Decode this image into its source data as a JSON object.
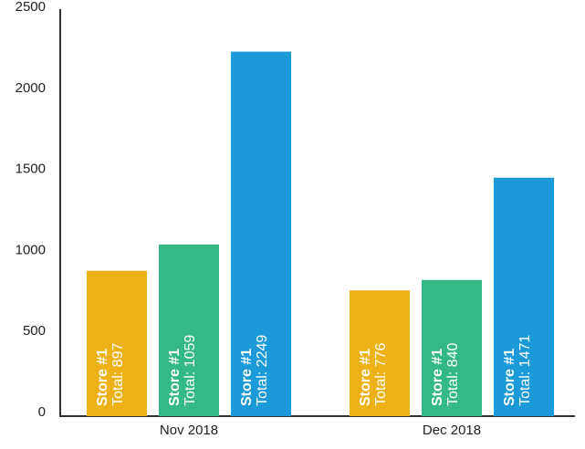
{
  "chart_data": {
    "type": "bar",
    "categories": [
      "Nov 2018",
      "Dec 2018"
    ],
    "series": [
      {
        "name": "Store #1",
        "color": "#efb118",
        "values": [
          897,
          776
        ],
        "value_labels": [
          "Total: 897",
          "Total: 776"
        ]
      },
      {
        "name": "Store #1",
        "color": "#33b886",
        "values": [
          1059,
          840
        ],
        "value_labels": [
          "Total: 1059",
          "Total: 840"
        ]
      },
      {
        "name": "Store #1",
        "color": "#1a9ad9",
        "values": [
          2249,
          1471
        ],
        "value_labels": [
          "Total: 2249",
          "Total: 1471"
        ]
      }
    ],
    "ylim": [
      0,
      2500
    ],
    "yticks": [
      0,
      500,
      1000,
      1500,
      2000,
      2500
    ],
    "grid": false
  }
}
